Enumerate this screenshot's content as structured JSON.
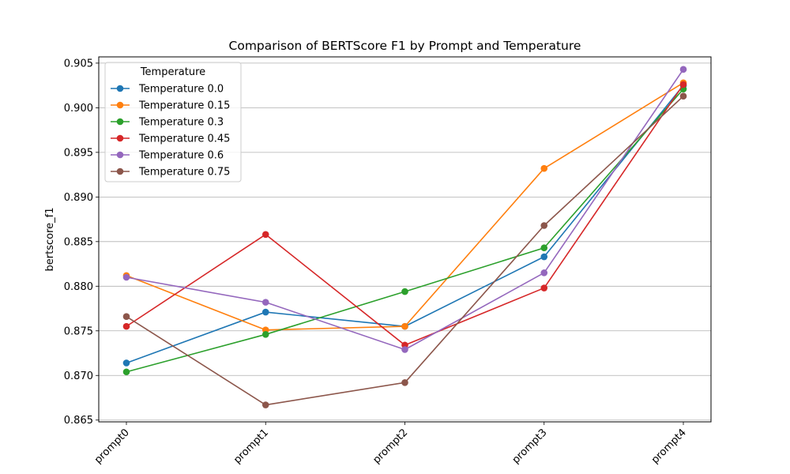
{
  "chart_data": {
    "type": "line",
    "title": "Comparison of BERTScore F1 by Prompt and Temperature",
    "xlabel": "",
    "ylabel": "bertscore_f1",
    "categories": [
      "prompt0",
      "prompt1",
      "prompt2",
      "prompt3",
      "prompt4"
    ],
    "ylim": [
      0.8648,
      0.9057
    ],
    "yticks": [
      0.865,
      0.87,
      0.875,
      0.88,
      0.885,
      0.89,
      0.895,
      0.9,
      0.905
    ],
    "ytick_labels": [
      "0.865",
      "0.870",
      "0.875",
      "0.880",
      "0.885",
      "0.890",
      "0.895",
      "0.900",
      "0.905"
    ],
    "grid": "horizontal",
    "x_tick_rotation": 45,
    "legend": {
      "title": "Temperature",
      "placement": "top-left"
    },
    "series": [
      {
        "name": "Temperature 0.0",
        "color": "#1f77b4",
        "values": [
          0.8714,
          0.8771,
          0.8755,
          0.8833,
          0.9025
        ]
      },
      {
        "name": "Temperature 0.15",
        "color": "#ff7f0e",
        "values": [
          0.8812,
          0.8751,
          0.8755,
          0.8932,
          0.9028
        ]
      },
      {
        "name": "Temperature 0.3",
        "color": "#2ca02c",
        "values": [
          0.8704,
          0.8746,
          0.8794,
          0.8843,
          0.9021
        ]
      },
      {
        "name": "Temperature 0.45",
        "color": "#d62728",
        "values": [
          0.8755,
          0.8858,
          0.8734,
          0.8798,
          0.9026
        ]
      },
      {
        "name": "Temperature 0.6",
        "color": "#9467bd",
        "values": [
          0.881,
          0.8782,
          0.8729,
          0.8815,
          0.9043
        ]
      },
      {
        "name": "Temperature 0.75",
        "color": "#8c564b",
        "values": [
          0.8766,
          0.8667,
          0.8692,
          0.8868,
          0.9013
        ]
      }
    ]
  }
}
